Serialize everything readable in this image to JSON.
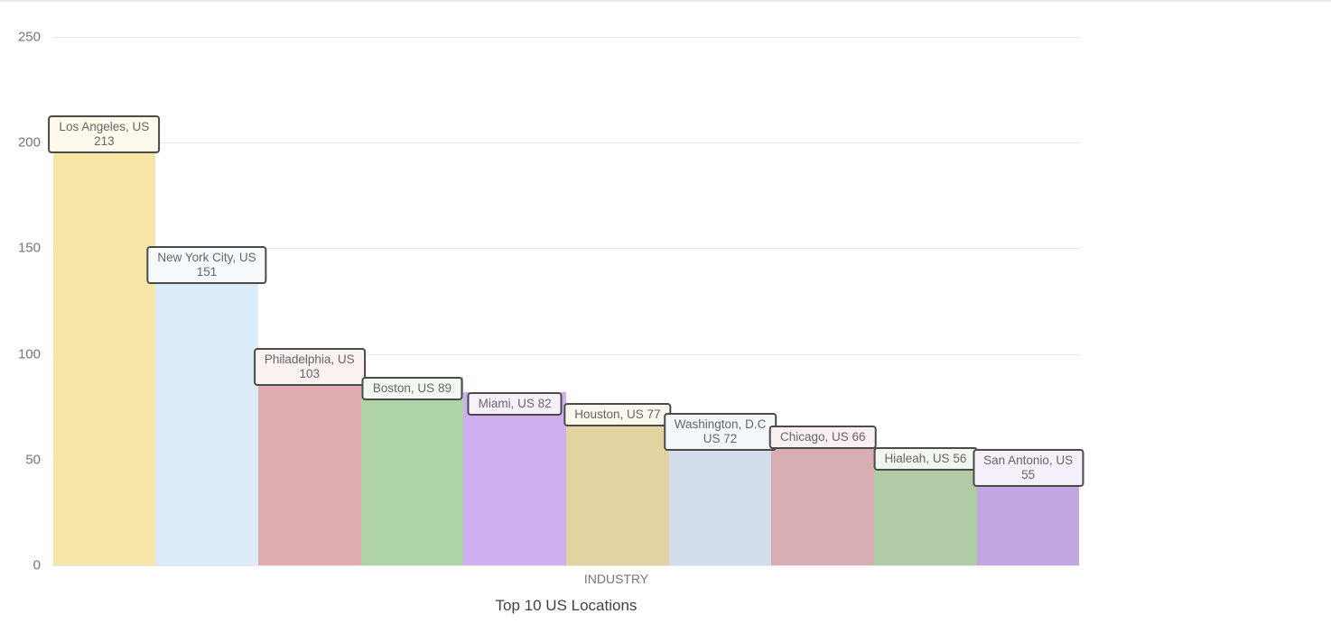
{
  "chart_data": {
    "type": "bar",
    "title": "Top 10 US Locations",
    "xlabel": "INDUSTRY",
    "ylabel": "",
    "ylim": [
      0,
      250
    ],
    "yticks": [
      0,
      50,
      100,
      150,
      200,
      250
    ],
    "grid": true,
    "legend": "none",
    "categories": [
      "Los Angeles, US",
      "New York City, US",
      "Philadelphia, US",
      "Boston, US",
      "Miami, US",
      "Houston, US",
      "Washington, D.C",
      "Chicago, US",
      "Hialeah, US",
      "San Antonio, US"
    ],
    "values": [
      213,
      151,
      103,
      89,
      82,
      77,
      72,
      66,
      56,
      55
    ],
    "bar_label_lines": [
      [
        "Los Angeles, US",
        "213"
      ],
      [
        "New York City, US",
        "151"
      ],
      [
        "Philadelphia, US",
        "103"
      ],
      [
        "Boston, US 89"
      ],
      [
        "Miami, US 82"
      ],
      [
        "Houston, US 77"
      ],
      [
        "Washington, D.C",
        "US 72"
      ],
      [
        "Chicago, US 66"
      ],
      [
        "Hialeah, US 56"
      ],
      [
        "San Antonio, US",
        "55"
      ]
    ],
    "bar_colors": [
      "#f6e5a7",
      "#dcebf8",
      "#dfadaf",
      "#aed3a8",
      "#cfaff1",
      "#e2d3a1",
      "#d2dee9",
      "#d6aeb2",
      "#b0cba6",
      "#c3a7e3"
    ],
    "label_bg_colors": [
      "#fdfaec",
      "#f6fafd",
      "#faf1f1",
      "#f2f9f0",
      "#f7f1fc",
      "#faf7ec",
      "#f3f7fa",
      "#f9f1f1",
      "#f1f6ee",
      "#f5f0fa"
    ],
    "label_border_color": "#4a4a4a",
    "label_text_color": "#666666",
    "grid_color": "#e6e6e6",
    "tick_color": "#757575",
    "title_color": "#424242",
    "axis_label_color": "#757575"
  }
}
